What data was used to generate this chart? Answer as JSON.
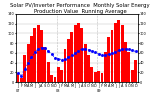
{
  "title": "Solar PV/Inverter Performance  Monthly Solar Energy Production Value  Running Average",
  "bar_color": "#ff0000",
  "avg_color": "#0000ff",
  "background_color": "#ffffff",
  "grid_color": "#bbbbbb",
  "months": [
    "J\n07",
    "F",
    "M",
    "A",
    "M",
    "J",
    "J",
    "A",
    "S",
    "O",
    "N",
    "D",
    "J\n08",
    "F",
    "M",
    "A",
    "M",
    "J",
    "J",
    "A",
    "S",
    "O",
    "N",
    "D",
    "J\n09",
    "F",
    "M",
    "A",
    "M",
    "J",
    "J",
    "A",
    "S",
    "O",
    "N",
    "D"
  ],
  "values": [
    18,
    8,
    55,
    78,
    95,
    112,
    118,
    108,
    72,
    42,
    15,
    10,
    30,
    25,
    68,
    88,
    102,
    118,
    122,
    112,
    78,
    55,
    30,
    20,
    22,
    18,
    62,
    92,
    108,
    122,
    128,
    118,
    82,
    62,
    25,
    45
  ],
  "running_avg": [
    18,
    13,
    27,
    39,
    51,
    61,
    68,
    71,
    69,
    64,
    57,
    50,
    48,
    46,
    48,
    51,
    55,
    59,
    64,
    68,
    68,
    66,
    64,
    61,
    58,
    55,
    55,
    57,
    59,
    62,
    65,
    68,
    68,
    68,
    65,
    63
  ],
  "ylim": [
    0,
    140
  ],
  "yticks": [
    0,
    20,
    40,
    60,
    80,
    100,
    120,
    140
  ],
  "title_fontsize": 3.8,
  "tick_fontsize": 2.5
}
